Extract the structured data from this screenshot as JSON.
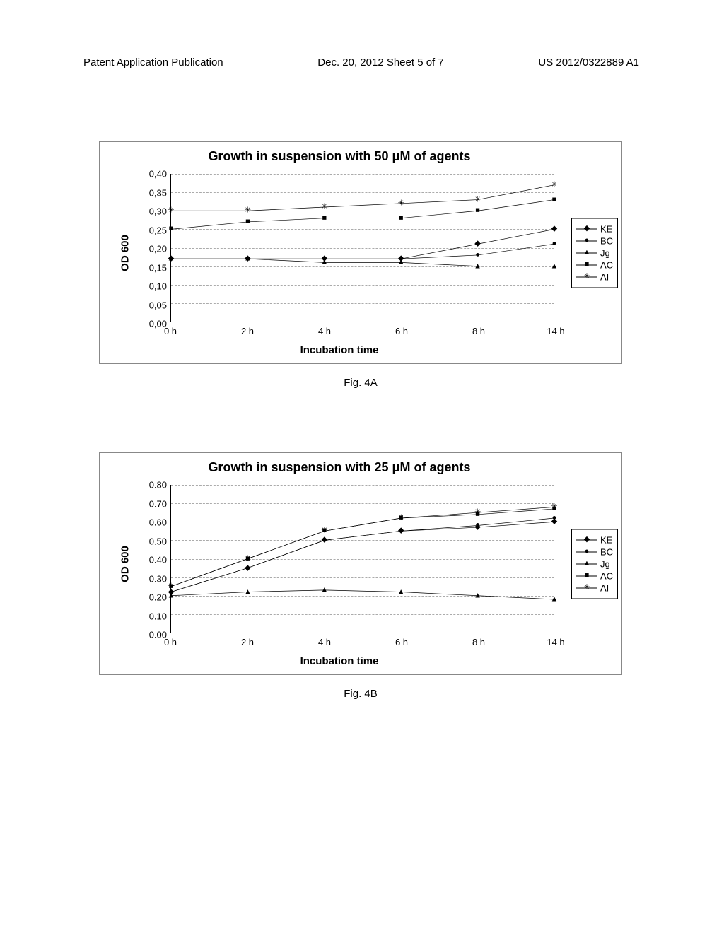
{
  "header": {
    "left": "Patent Application Publication",
    "center": "Dec. 20, 2012  Sheet 5 of 7",
    "right": "US 2012/0322889 A1"
  },
  "charts": [
    {
      "id": "fig4a",
      "title": "Growth in suspension with 50 μM of agents",
      "caption": "Fig. 4A",
      "ylabel": "OD 600",
      "xlabel": "Incubation time",
      "xticks": [
        "0 h",
        "2 h",
        "4 h",
        "6 h",
        "8 h",
        "14 h"
      ],
      "ymin": 0.0,
      "ymax": 0.4,
      "ystep": 0.05,
      "ylabels": [
        "0,00",
        "0,05",
        "0,10",
        "0,15",
        "0,20",
        "0,25",
        "0,30",
        "0,35",
        "0,40"
      ],
      "series": [
        {
          "name": "KE",
          "marker": "diamond",
          "values": [
            0.17,
            0.17,
            0.17,
            0.17,
            0.21,
            0.25
          ]
        },
        {
          "name": "BC",
          "marker": "circle",
          "values": [
            0.17,
            0.17,
            0.17,
            0.17,
            0.18,
            0.21
          ]
        },
        {
          "name": "Jg",
          "marker": "triangle",
          "values": [
            0.17,
            0.17,
            0.16,
            0.16,
            0.15,
            0.15
          ]
        },
        {
          "name": "AC",
          "marker": "square",
          "values": [
            0.25,
            0.27,
            0.28,
            0.28,
            0.3,
            0.33
          ]
        },
        {
          "name": "AI",
          "marker": "star",
          "values": [
            0.3,
            0.3,
            0.31,
            0.32,
            0.33,
            0.37
          ]
        }
      ],
      "colors": {
        "line": "#000000",
        "grid": "#888888",
        "bg": "#ffffff"
      }
    },
    {
      "id": "fig4b",
      "title": "Growth in suspension with 25 μM of agents",
      "caption": "Fig. 4B",
      "ylabel": "OD 600",
      "xlabel": "Incubation time",
      "xticks": [
        "0 h",
        "2 h",
        "4 h",
        "6 h",
        "8 h",
        "14 h"
      ],
      "ymin": 0.0,
      "ymax": 0.8,
      "ystep": 0.1,
      "ylabels": [
        "0.00",
        "0.10",
        "0.20",
        "0.30",
        "0.40",
        "0.50",
        "0.60",
        "0.70",
        "0.80"
      ],
      "series": [
        {
          "name": "KE",
          "marker": "diamond",
          "values": [
            0.22,
            0.35,
            0.5,
            0.55,
            0.57,
            0.6
          ]
        },
        {
          "name": "BC",
          "marker": "circle",
          "values": [
            0.22,
            0.35,
            0.5,
            0.55,
            0.58,
            0.62
          ]
        },
        {
          "name": "Jg",
          "marker": "triangle",
          "values": [
            0.2,
            0.22,
            0.23,
            0.22,
            0.2,
            0.18
          ]
        },
        {
          "name": "AC",
          "marker": "square",
          "values": [
            0.25,
            0.4,
            0.55,
            0.62,
            0.64,
            0.67
          ]
        },
        {
          "name": "AI",
          "marker": "star",
          "values": [
            0.25,
            0.4,
            0.55,
            0.62,
            0.65,
            0.68
          ]
        }
      ],
      "colors": {
        "line": "#000000",
        "grid": "#888888",
        "bg": "#ffffff"
      }
    }
  ],
  "markers": {
    "diamond": "◆",
    "circle": "●",
    "triangle": "▲",
    "square": "■",
    "star": "✳"
  },
  "legend_labels": {
    "KE": "KE",
    "BC": "BC",
    "Jg": "Jg",
    "AC": "AC",
    "AI": "AI"
  }
}
